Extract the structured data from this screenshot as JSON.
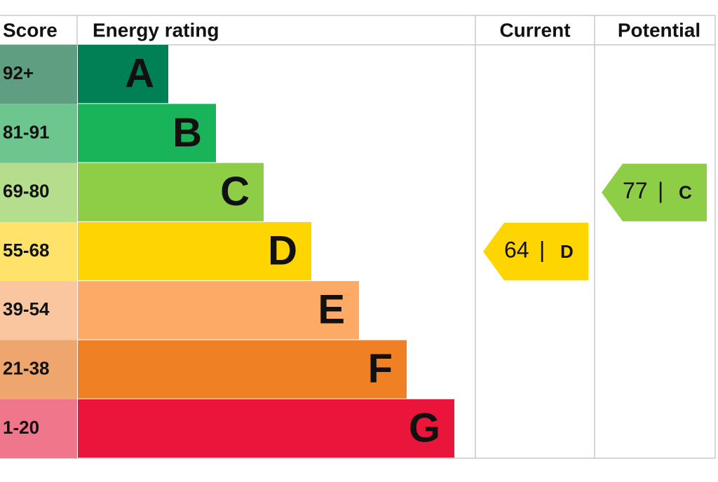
{
  "header": {
    "score": "Score",
    "energy_rating": "Energy rating",
    "current": "Current",
    "potential": "Potential"
  },
  "bands": [
    {
      "score": "92+",
      "letter": "A",
      "color": "#008054",
      "score_color": "#5f9e80"
    },
    {
      "score": "81-91",
      "letter": "B",
      "color": "#19b459",
      "score_color": "#6cc68d"
    },
    {
      "score": "69-80",
      "letter": "C",
      "color": "#8dce46",
      "score_color": "#b4de8b"
    },
    {
      "score": "55-68",
      "letter": "D",
      "color": "#ffd500",
      "score_color": "#ffe26a"
    },
    {
      "score": "39-54",
      "letter": "E",
      "color": "#fcaa65",
      "score_color": "#f9c6a0"
    },
    {
      "score": "21-38",
      "letter": "F",
      "color": "#ef8023",
      "score_color": "#efa66c"
    },
    {
      "score": "1-20",
      "letter": "G",
      "color": "#e9153b",
      "score_color": "#f0768b"
    }
  ],
  "current": {
    "score": 64,
    "divider": "|",
    "rating": "D",
    "band": 3
  },
  "potential": {
    "score": 77,
    "divider": "|",
    "rating": "C",
    "band": 2
  }
}
